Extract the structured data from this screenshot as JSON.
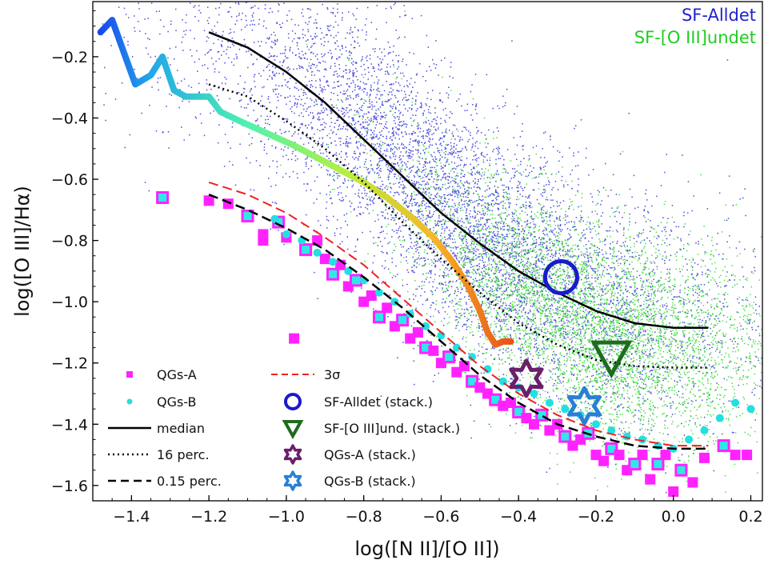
{
  "chart_data": {
    "type": "scatter",
    "title": "",
    "xlabel": "log([N II]/[O II])",
    "ylabel": "log([O III]/Hα)",
    "xlim": [
      -1.5,
      0.23
    ],
    "ylim": [
      -1.65,
      -0.02
    ],
    "grid": false,
    "x_ticks": [
      -1.4,
      -1.2,
      -1.0,
      -0.8,
      -0.6,
      -0.4,
      -0.2,
      0.0,
      0.2
    ],
    "x_tick_labels": [
      "−1.4",
      "−1.2",
      "−1.0",
      "−0.8",
      "−0.6",
      "−0.4",
      "−0.2",
      "0.0",
      "0.2"
    ],
    "y_ticks": [
      -1.6,
      -1.4,
      -1.2,
      -1.0,
      -0.8,
      -0.6,
      -0.4,
      -0.2
    ],
    "y_tick_labels": [
      "−1.6",
      "−1.4",
      "−1.2",
      "−1.0",
      "−0.8",
      "−0.6",
      "−0.4",
      "−0.2"
    ],
    "corner_labels": [
      {
        "text": "SF-Alldet",
        "color": "#2222cc"
      },
      {
        "text": "SF-[O III]undet",
        "color": "#22cc22"
      }
    ],
    "legend_placement": "lower-left",
    "legend": [
      {
        "label": "QGs-A",
        "marker": "square",
        "color": "#ff22ff"
      },
      {
        "label": "QGs-B",
        "marker": "dot",
        "color": "#22e0e0"
      },
      {
        "label": "median",
        "marker": "solid-line",
        "color": "#000000"
      },
      {
        "label": "16 perc.",
        "marker": "dotted-line",
        "color": "#000000"
      },
      {
        "label": "0.15 perc.",
        "marker": "dashed-line",
        "color": "#000000"
      },
      {
        "label": "3σ",
        "marker": "red-dashed-line",
        "color": "#ee2222"
      },
      {
        "label": "SF-Alldet (stack.)",
        "marker": "circle",
        "color": "#1a1acc"
      },
      {
        "label": "SF-[O III]und. (stack.)",
        "marker": "triangle-down",
        "color": "#1f6b1f"
      },
      {
        "label": "QGs-A (stack.)",
        "marker": "star",
        "color": "#6a1f6a"
      },
      {
        "label": "QGs-B (stack.)",
        "marker": "star",
        "color": "#2a7fd4"
      }
    ],
    "series": [
      {
        "name": "median",
        "style": "solid",
        "color": "#000000",
        "x": [
          -1.2,
          -1.1,
          -1.0,
          -0.9,
          -0.8,
          -0.7,
          -0.6,
          -0.5,
          -0.4,
          -0.3,
          -0.2,
          -0.1,
          0.0,
          0.09
        ],
        "y": [
          -0.12,
          -0.17,
          -0.25,
          -0.35,
          -0.47,
          -0.59,
          -0.71,
          -0.81,
          -0.9,
          -0.97,
          -1.03,
          -1.07,
          -1.085,
          -1.085
        ]
      },
      {
        "name": "16 perc.",
        "style": "dotted",
        "color": "#000000",
        "x": [
          -1.2,
          -1.1,
          -1.0,
          -0.9,
          -0.8,
          -0.7,
          -0.6,
          -0.5,
          -0.4,
          -0.3,
          -0.2,
          -0.1,
          0.0,
          0.09
        ],
        "y": [
          -0.29,
          -0.33,
          -0.41,
          -0.5,
          -0.61,
          -0.74,
          -0.86,
          -0.97,
          -1.07,
          -1.14,
          -1.19,
          -1.21,
          -1.215,
          -1.215
        ]
      },
      {
        "name": "0.15 perc.",
        "style": "dashed",
        "color": "#000000",
        "x": [
          -1.2,
          -1.1,
          -1.0,
          -0.9,
          -0.8,
          -0.7,
          -0.6,
          -0.5,
          -0.4,
          -0.3,
          -0.2,
          -0.1,
          0.0,
          0.09
        ],
        "y": [
          -0.65,
          -0.7,
          -0.76,
          -0.83,
          -0.92,
          -1.02,
          -1.13,
          -1.24,
          -1.33,
          -1.4,
          -1.44,
          -1.47,
          -1.48,
          -1.48
        ]
      },
      {
        "name": "3σ",
        "style": "dashed",
        "color": "#ee2222",
        "x": [
          -1.2,
          -1.1,
          -1.0,
          -0.9,
          -0.8,
          -0.7,
          -0.6,
          -0.5,
          -0.4,
          -0.3,
          -0.2,
          -0.1,
          0.0,
          0.09
        ],
        "y": [
          -0.61,
          -0.65,
          -0.71,
          -0.79,
          -0.88,
          -0.99,
          -1.1,
          -1.21,
          -1.3,
          -1.37,
          -1.42,
          -1.45,
          -1.47,
          -1.47
        ]
      },
      {
        "name": "threshold track",
        "style": "gradient",
        "x": [
          -1.48,
          -1.45,
          -1.39,
          -1.35,
          -1.32,
          -1.29,
          -1.26,
          -1.2,
          -1.17,
          -1.12,
          -1.05,
          -0.98,
          -0.92,
          -0.86,
          -0.8,
          -0.74,
          -0.68,
          -0.62,
          -0.57,
          -0.53,
          -0.5,
          -0.48,
          -0.46,
          -0.44,
          -0.42
        ],
        "y": [
          -0.12,
          -0.08,
          -0.29,
          -0.26,
          -0.2,
          -0.31,
          -0.33,
          -0.33,
          -0.38,
          -0.41,
          -0.45,
          -0.49,
          -0.53,
          -0.57,
          -0.61,
          -0.66,
          -0.72,
          -0.79,
          -0.87,
          -0.95,
          -1.03,
          -1.1,
          -1.14,
          -1.13,
          -1.13
        ]
      }
    ],
    "qgs_a": {
      "x": [
        -1.32,
        -1.2,
        -1.15,
        -1.1,
        -1.06,
        -1.06,
        -1.02,
        -1.0,
        -0.98,
        -0.95,
        -0.92,
        -0.9,
        -0.88,
        -0.86,
        -0.84,
        -0.82,
        -0.8,
        -0.78,
        -0.76,
        -0.74,
        -0.72,
        -0.7,
        -0.68,
        -0.66,
        -0.64,
        -0.62,
        -0.6,
        -0.58,
        -0.56,
        -0.54,
        -0.52,
        -0.5,
        -0.48,
        -0.46,
        -0.44,
        -0.42,
        -0.4,
        -0.38,
        -0.36,
        -0.34,
        -0.32,
        -0.3,
        -0.28,
        -0.26,
        -0.24,
        -0.22,
        -0.2,
        -0.18,
        -0.16,
        -0.14,
        -0.12,
        -0.1,
        -0.08,
        -0.06,
        -0.04,
        -0.02,
        0.0,
        0.02,
        0.05,
        0.08,
        0.13,
        0.16,
        0.19
      ],
      "y": [
        -0.66,
        -0.67,
        -0.68,
        -0.72,
        -0.78,
        -0.8,
        -0.74,
        -0.79,
        -1.12,
        -0.83,
        -0.8,
        -0.86,
        -0.91,
        -0.88,
        -0.95,
        -0.93,
        -1.0,
        -0.98,
        -1.05,
        -1.02,
        -1.08,
        -1.06,
        -1.12,
        -1.1,
        -1.15,
        -1.16,
        -1.2,
        -1.18,
        -1.23,
        -1.21,
        -1.26,
        -1.28,
        -1.3,
        -1.32,
        -1.34,
        -1.33,
        -1.36,
        -1.38,
        -1.4,
        -1.37,
        -1.42,
        -1.4,
        -1.44,
        -1.47,
        -1.45,
        -1.43,
        -1.5,
        -1.52,
        -1.48,
        -1.5,
        -1.55,
        -1.53,
        -1.5,
        -1.58,
        -1.53,
        -1.5,
        -1.62,
        -1.55,
        -1.59,
        -1.51,
        -1.47,
        -1.5,
        -1.5
      ]
    },
    "qgs_b": {
      "x": [
        -1.03,
        -1.0,
        -0.96,
        -0.92,
        -0.88,
        -0.84,
        -0.8,
        -0.76,
        -0.72,
        -0.68,
        -0.64,
        -0.6,
        -0.56,
        -0.52,
        -0.48,
        -0.44,
        -0.4,
        -0.36,
        -0.32,
        -0.28,
        -0.24,
        -0.2,
        -0.16,
        -0.12,
        -0.08,
        -0.04,
        0.0,
        0.04,
        0.08,
        0.12,
        0.16,
        0.2
      ],
      "y": [
        -0.73,
        -0.78,
        -0.8,
        -0.84,
        -0.87,
        -0.9,
        -0.93,
        -0.97,
        -1.0,
        -1.04,
        -1.08,
        -1.11,
        -1.15,
        -1.18,
        -1.22,
        -1.26,
        -1.28,
        -1.3,
        -1.33,
        -1.35,
        -1.37,
        -1.4,
        -1.42,
        -1.44,
        -1.45,
        -1.47,
        -1.48,
        -1.45,
        -1.42,
        -1.38,
        -1.33,
        -1.35
      ]
    },
    "stacks": [
      {
        "name": "SF-Alldet (stack.)",
        "marker": "circle",
        "x": -0.29,
        "y": -0.92
      },
      {
        "name": "SF-[O III]und. (stack.)",
        "marker": "triangle-down",
        "x": -0.16,
        "y": -1.18
      },
      {
        "name": "QGs-A (stack.)",
        "marker": "star",
        "x": -0.38,
        "y": -1.25
      },
      {
        "name": "QGs-B (stack.)",
        "marker": "star",
        "x": -0.23,
        "y": -1.34
      }
    ]
  }
}
